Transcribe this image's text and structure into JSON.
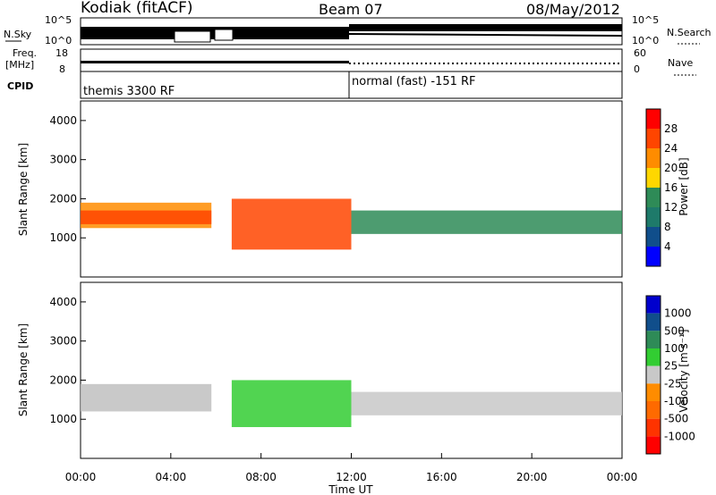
{
  "header": {
    "station": "Kodiak (fitACF)",
    "beam": "Beam 07",
    "date": "08/May/2012"
  },
  "status_panels": {
    "nsky": {
      "label": "N.Sky",
      "right_label": "N.Search",
      "left_ticks": [
        "10^5",
        "10^0"
      ],
      "right_ticks": [
        "10^5",
        "10^0"
      ]
    },
    "freq": {
      "label_line1": "Freq.",
      "label_line2": "[MHz]",
      "right_label": "Nave",
      "left_ticks": [
        "18",
        "8"
      ],
      "right_ticks": [
        "60",
        "0"
      ]
    },
    "cpid": {
      "label": "CPID",
      "modes": [
        "themis 3300 RF",
        "normal (fast) -151 RF"
      ]
    }
  },
  "chart_data": [
    {
      "type": "heatmap",
      "title": "",
      "xlabel": "Time UT",
      "ylabel": "Slant Range [km]",
      "x_ticks": [
        "00:00",
        "04:00",
        "08:00",
        "12:00",
        "16:00",
        "20:00",
        "00:00"
      ],
      "x_range_hours": [
        0,
        24
      ],
      "y_ticks": [
        1000,
        2000,
        3000,
        4000
      ],
      "ylim": [
        0,
        4500
      ],
      "colorbar": {
        "label": "Power [dB]",
        "ticks": [
          "28",
          "24",
          "20",
          "16",
          "12",
          "8",
          "4"
        ],
        "colors": [
          "#ff0000",
          "#ff4500",
          "#ff8c00",
          "#ffd700",
          "#2e8b57",
          "#1e7a6a",
          "#104e8b",
          "#0000ff"
        ]
      },
      "bands": [
        {
          "start": 0.0,
          "end": 5.8,
          "low": 1250,
          "high": 1900,
          "color": "#ff8c00"
        },
        {
          "start": 0.0,
          "end": 5.8,
          "low": 1350,
          "high": 1700,
          "color": "#ff4500"
        },
        {
          "start": 6.7,
          "end": 12.0,
          "low": 700,
          "high": 2000,
          "color": "#ff4500"
        },
        {
          "start": 12.0,
          "end": 24.0,
          "low": 1100,
          "high": 1700,
          "color": "#2e8b57"
        }
      ]
    },
    {
      "type": "heatmap",
      "title": "",
      "xlabel": "Time UT",
      "ylabel": "Slant Range [km]",
      "x_ticks": [
        "00:00",
        "04:00",
        "08:00",
        "12:00",
        "16:00",
        "20:00",
        "00:00"
      ],
      "x_range_hours": [
        0,
        24
      ],
      "y_ticks": [
        1000,
        2000,
        3000,
        4000
      ],
      "ylim": [
        0,
        4500
      ],
      "colorbar": {
        "label": "Velocity [m s⁻¹]",
        "ticks": [
          "1000",
          "500",
          "100",
          "25",
          "-25",
          "-100",
          "-500",
          "-1000"
        ],
        "colors": [
          "#0000cd",
          "#104e8b",
          "#2e8b57",
          "#32cd32",
          "#c8c8c8",
          "#ff8c00",
          "#ff6a00",
          "#ff3300",
          "#ff0000"
        ]
      },
      "bands": [
        {
          "start": 0.0,
          "end": 5.8,
          "low": 1200,
          "high": 1900,
          "color": "#c0c0c0"
        },
        {
          "start": 6.7,
          "end": 12.0,
          "low": 800,
          "high": 2000,
          "color": "#32cd32"
        },
        {
          "start": 12.0,
          "end": 24.0,
          "low": 1100,
          "high": 1700,
          "color": "#c8c8c8"
        }
      ]
    }
  ]
}
